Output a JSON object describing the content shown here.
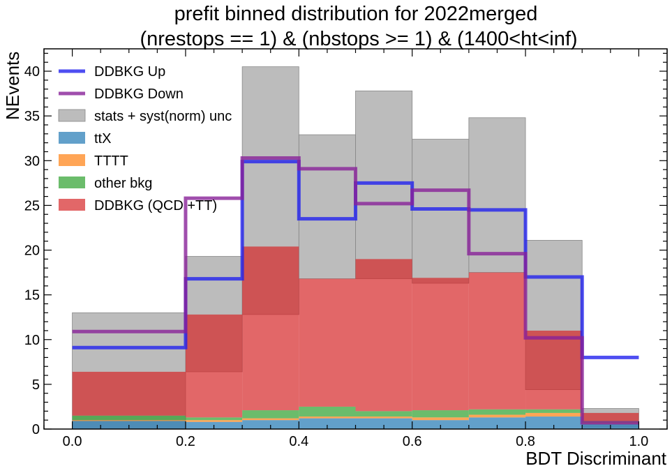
{
  "chart_data": {
    "type": "bar",
    "title_lines": [
      "prefit binned distribution for 2022merged",
      "(nrestops == 1) & (nbstops >= 1) & (1400<ht<inf)"
    ],
    "xlabel": "BDT Discriminant",
    "ylabel": "NEvents",
    "xlim": [
      -0.05,
      1.05
    ],
    "ylim": [
      0,
      42.5
    ],
    "xticks": [
      0.0,
      0.2,
      0.4,
      0.6,
      0.8,
      1.0
    ],
    "xtick_labels": [
      "0.0",
      "0.2",
      "0.4",
      "0.6",
      "0.8",
      "1.0"
    ],
    "yticks": [
      0,
      5,
      10,
      15,
      20,
      25,
      30,
      35,
      40
    ],
    "ytick_labels": [
      "0",
      "5",
      "10",
      "15",
      "20",
      "25",
      "30",
      "35",
      "40"
    ],
    "bin_edges": [
      0.0,
      0.2,
      0.3,
      0.4,
      0.5,
      0.6,
      0.7,
      0.8,
      0.9,
      1.0
    ],
    "stack_series": [
      {
        "name": "ttX",
        "color": "#1f77b4",
        "values": [
          0.9,
          0.8,
          1.0,
          1.2,
          1.2,
          1.0,
          1.3,
          1.4,
          0.6
        ]
      },
      {
        "name": "TTTT",
        "color": "#ff7f0e",
        "values": [
          0.1,
          0.2,
          0.2,
          0.2,
          0.2,
          0.3,
          0.3,
          0.4,
          0.1
        ]
      },
      {
        "name": "other bkg",
        "color": "#2ca02c",
        "values": [
          0.5,
          0.3,
          0.9,
          1.1,
          0.6,
          0.8,
          0.6,
          0.4,
          0.2
        ]
      },
      {
        "name": "DDBKG (QCD +TT)",
        "color": "#d62728",
        "values": [
          4.9,
          11.5,
          18.3,
          14.3,
          17.0,
          14.8,
          15.3,
          8.8,
          0.9
        ]
      }
    ],
    "stack_alpha": 0.7,
    "uncertainty": {
      "name": "stats + syst(norm) unc",
      "color": "#a0a0a0",
      "low": [
        0.0,
        6.4,
        12.8,
        16.8,
        16.8,
        16.3,
        17.5,
        4.4,
        0.2
      ],
      "high": [
        13.0,
        19.3,
        40.5,
        32.9,
        37.8,
        32.4,
        34.8,
        21.1,
        2.3
      ]
    },
    "step_series": [
      {
        "name": "DDBKG Up",
        "color": "#2222ee",
        "values": [
          9.1,
          16.8,
          29.9,
          23.5,
          27.5,
          24.6,
          24.5,
          17.0,
          8.0
        ]
      },
      {
        "name": "DDBKG Down",
        "color": "#882299",
        "values": [
          10.9,
          25.8,
          30.3,
          29.1,
          25.2,
          26.7,
          19.6,
          10.2,
          0.7
        ]
      }
    ],
    "legend": {
      "location": "top-left",
      "order": [
        "DDBKG Up",
        "DDBKG Down",
        "stats + syst(norm) unc",
        "ttX",
        "TTTT",
        "other bkg",
        "DDBKG (QCD +TT)"
      ]
    }
  }
}
